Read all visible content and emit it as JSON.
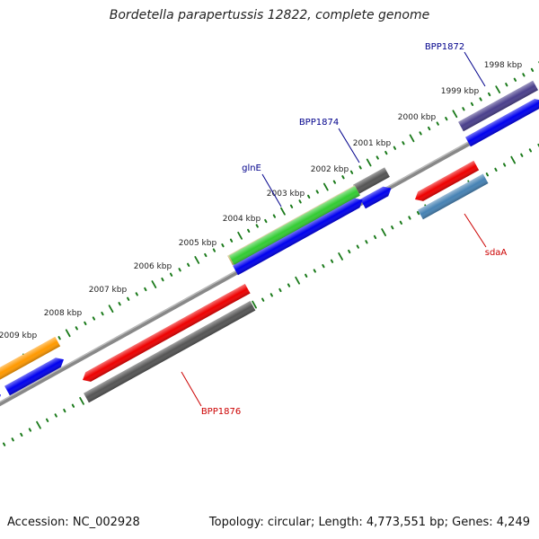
{
  "title": "Bordetella parapertussis 12822, complete genome",
  "footer": {
    "accession": "Accession: NC_002928",
    "topology": "Topology: circular; Length: 4,773,551 bp; Genes: 4,249"
  },
  "kbp_labels": [
    "1998 kbp",
    "1999 kbp",
    "2000 kbp",
    "2001 kbp",
    "2002 kbp",
    "2003 kbp",
    "2004 kbp",
    "2005 kbp",
    "2006 kbp",
    "2007 kbp",
    "2008 kbp",
    "2009 kbp"
  ],
  "gene_labels": [
    {
      "text": "BPP1872",
      "color": "#00008b"
    },
    {
      "text": "BPP1874",
      "color": "#00008b"
    },
    {
      "text": "glnE",
      "color": "#00008b"
    },
    {
      "text": "sdaA",
      "color": "#cc0000"
    },
    {
      "text": "BPP1876",
      "color": "#cc0000"
    }
  ],
  "colors": {
    "backbone": "#888888",
    "tick": "#1a7a1a",
    "cds_forward": "#0000ee",
    "red": "#ee0000",
    "dark_grey": "#555555",
    "orange": "#ff9900",
    "purple": "#4a3f8c",
    "steel_blue": "#4682b4",
    "olive": "#c8b46e",
    "green": "#33cc33"
  }
}
